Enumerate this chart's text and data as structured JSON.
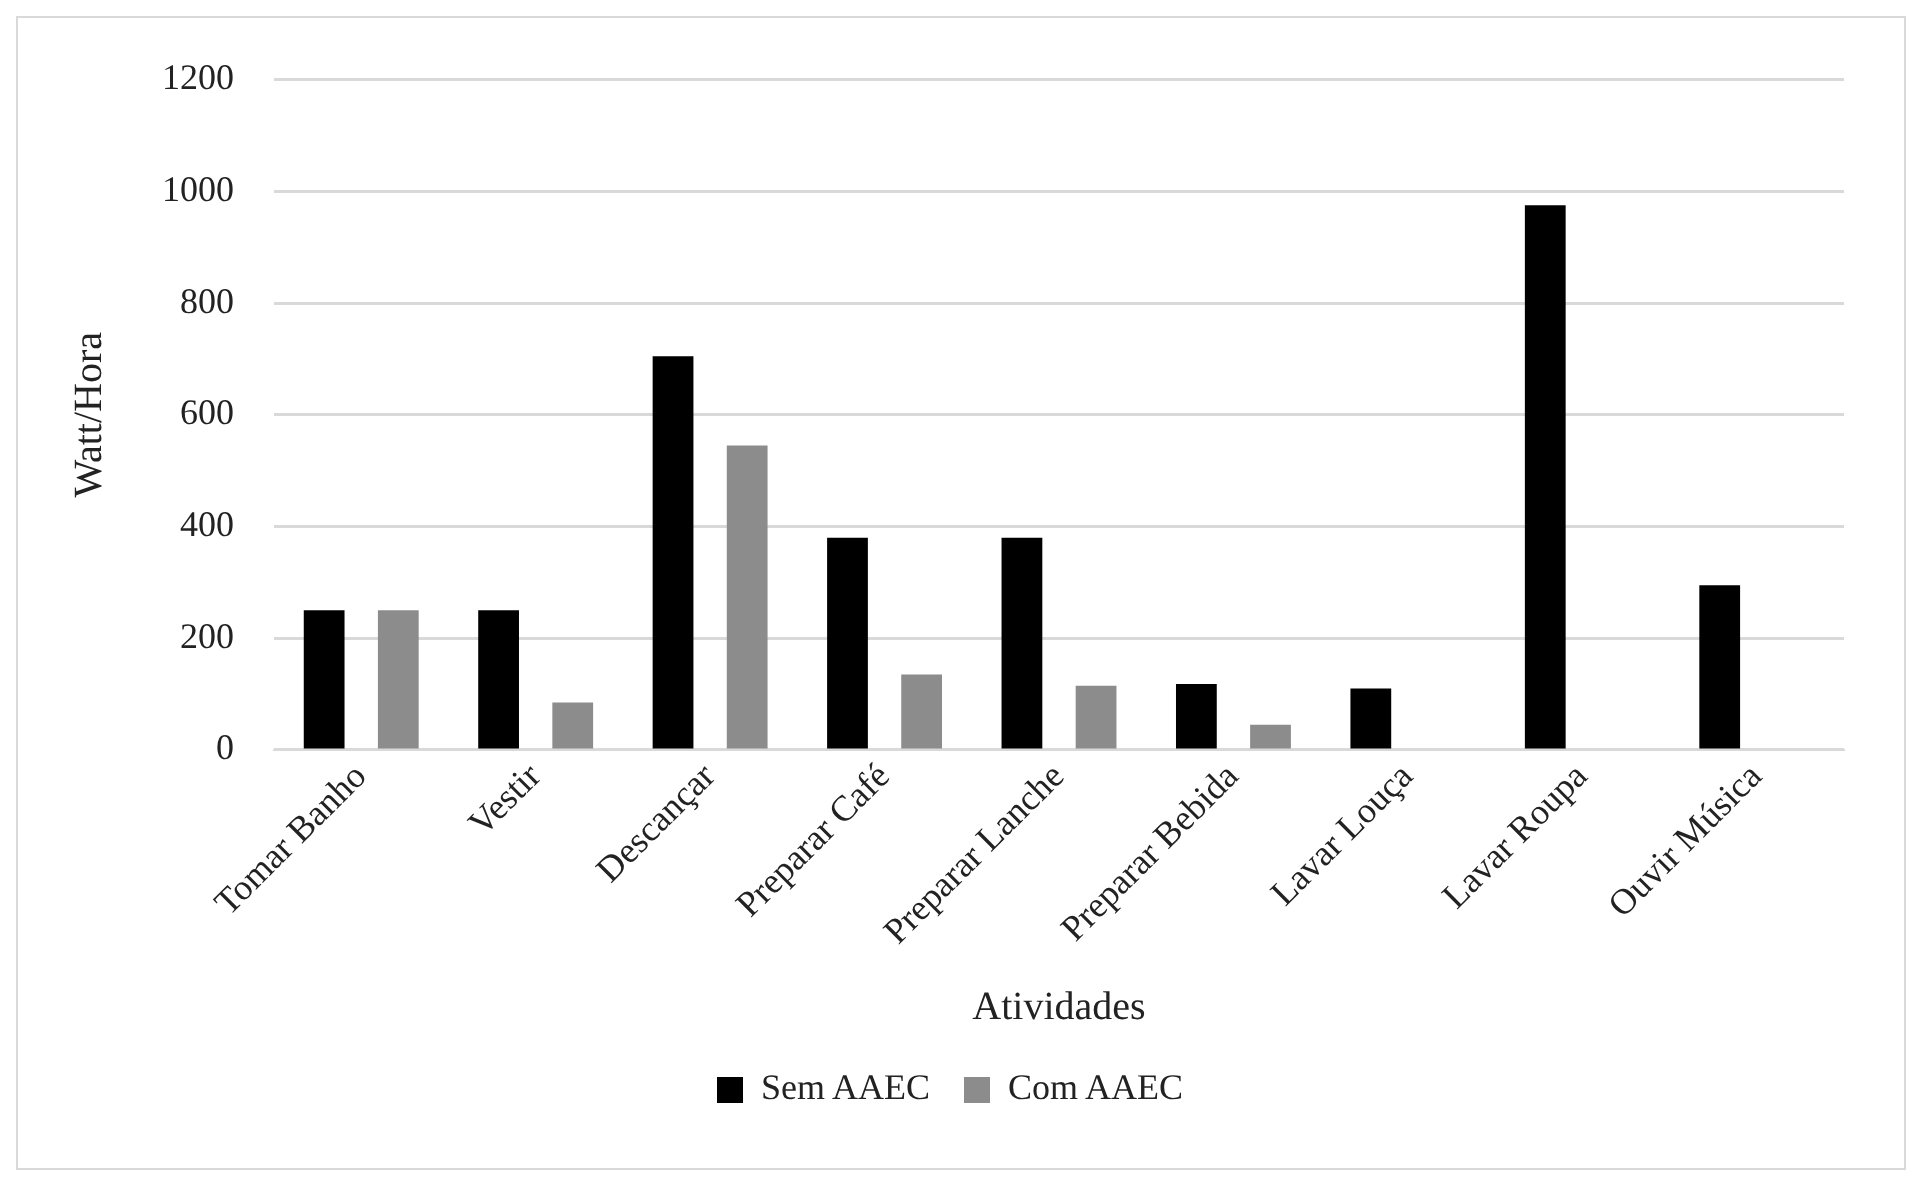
{
  "chart_data": {
    "type": "bar",
    "xlabel": "Atividades",
    "ylabel": "Watt/Hora",
    "categories": [
      "Tomar Banho",
      "Vestir",
      "Descançar",
      "Preparar Café",
      "Preparar Lanche",
      "Preparar Bebida",
      "Lavar Louça",
      "Lavar Roupa",
      "Ouvir Música"
    ],
    "series": [
      {
        "name": "Sem AAEC",
        "color": "#000000",
        "values": [
          250,
          250,
          705,
          380,
          380,
          118,
          110,
          975,
          295
        ]
      },
      {
        "name": "Com AAEC",
        "color": "#8c8c8c",
        "values": [
          250,
          85,
          545,
          135,
          115,
          45,
          null,
          null,
          null
        ]
      }
    ],
    "ylim": [
      0,
      1200
    ],
    "yticks": [
      0,
      200,
      400,
      600,
      800,
      1000,
      1200
    ],
    "grid": "y",
    "legend": "bottom"
  }
}
